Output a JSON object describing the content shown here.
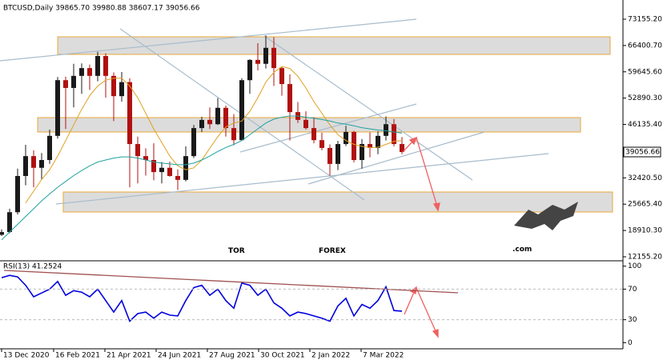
{
  "chart_data": [
    {
      "type": "candlestick",
      "title": "BTCUSD,Daily  39865.70 39980.88 38607.17 39056.66",
      "x": [
        0,
        10,
        20,
        30,
        40,
        50,
        60,
        70,
        80,
        90,
        100,
        110,
        120,
        130,
        140,
        150,
        160,
        170,
        180,
        190,
        200,
        210,
        220,
        230,
        240,
        250,
        260,
        270,
        280,
        290,
        300,
        310,
        320,
        330,
        340,
        350,
        360,
        370,
        380,
        390,
        400,
        410,
        420,
        430,
        440,
        450,
        460,
        470,
        480,
        490,
        500
      ],
      "open": [
        17800,
        18500,
        23600,
        32900,
        38000,
        35000,
        37000,
        43200,
        57500,
        55500,
        58600,
        60600,
        58600,
        63700,
        58600,
        53400,
        57000,
        41100,
        38000,
        37000,
        33900,
        35000,
        32900,
        31900,
        38000,
        45200,
        47300,
        46200,
        50400,
        45200,
        42100,
        57500,
        62700,
        61700,
        65800,
        60600,
        56500,
        49300,
        47300,
        45200,
        42100,
        40100,
        36000,
        41100,
        44200,
        37000,
        41100,
        40100,
        43200,
        46200,
        41100
      ],
      "high": [
        19200,
        24500,
        34800,
        40900,
        39500,
        38800,
        44800,
        58300,
        58400,
        61700,
        61800,
        61500,
        64800,
        64400,
        59500,
        59600,
        58000,
        43000,
        40000,
        41300,
        36500,
        36600,
        34600,
        40500,
        46000,
        48100,
        50500,
        52900,
        51000,
        48800,
        58000,
        62900,
        67000,
        69000,
        68500,
        60900,
        59000,
        51900,
        49500,
        48000,
        44000,
        41000,
        41900,
        45800,
        44500,
        42400,
        44100,
        44400,
        48200,
        47500,
        42900
      ],
      "low": [
        17500,
        18200,
        23000,
        30500,
        30000,
        32000,
        36000,
        42500,
        45000,
        50500,
        54000,
        55000,
        57200,
        53000,
        47000,
        52000,
        30000,
        31000,
        33000,
        31800,
        31000,
        32700,
        29300,
        31500,
        37500,
        44200,
        45000,
        46000,
        43000,
        40800,
        42000,
        54000,
        60000,
        60500,
        56000,
        53500,
        42000,
        46500,
        44800,
        41300,
        39500,
        33000,
        34400,
        40600,
        36400,
        34800,
        37700,
        38500,
        42000,
        40500,
        38500
      ],
      "close": [
        18500,
        23600,
        32900,
        38000,
        35000,
        37000,
        43200,
        57500,
        55500,
        58600,
        60600,
        58600,
        63700,
        58600,
        53400,
        57000,
        41100,
        38000,
        37000,
        33900,
        35000,
        32900,
        31900,
        38000,
        45200,
        47300,
        46200,
        50400,
        45200,
        42100,
        57500,
        62700,
        61700,
        65800,
        60600,
        56500,
        49300,
        47300,
        45200,
        42100,
        40100,
        36000,
        41100,
        44200,
        37000,
        41100,
        40100,
        43200,
        46200,
        41100,
        39056.66
      ],
      "up_color": "#1a1a1a",
      "down_color": "#b01010",
      "series": [
        {
          "color": "#e0a020",
          "values": [
            null,
            null,
            null,
            26000,
            29000,
            32000,
            34500,
            38000,
            42000,
            46000,
            50000,
            53500,
            56000,
            57500,
            58000,
            58000,
            56000,
            53000,
            49000,
            45000,
            41500,
            38000,
            35500,
            34500,
            35000,
            37000,
            40000,
            43000,
            45500,
            46500,
            47000,
            49500,
            53000,
            57000,
            59500,
            61000,
            60500,
            58500,
            55500,
            52000,
            49000,
            46000,
            43500,
            42000,
            41000,
            40500,
            40200,
            40300,
            41000,
            41800,
            42000
          ]
        },
        {
          "color": "#20a0a0",
          "values": [
            16500,
            18500,
            20500,
            22500,
            24500,
            26500,
            28300,
            30000,
            31500,
            33000,
            34300,
            35500,
            36500,
            37000,
            37500,
            37800,
            37800,
            37500,
            37000,
            36500,
            36200,
            36000,
            35800,
            35800,
            36200,
            37000,
            38000,
            39200,
            40200,
            41000,
            42000,
            43500,
            45000,
            46500,
            47500,
            48000,
            48300,
            48300,
            48000,
            47700,
            47400,
            47000,
            46500,
            46200,
            45800,
            45300,
            45000,
            44700,
            44500,
            44200,
            43900
          ]
        }
      ],
      "xlim": [
        -2,
        776
      ],
      "ylim": [
        11330,
        77260
      ],
      "yticks": [
        {
          "value": 73155.2,
          "label": "73155.20"
        },
        {
          "value": 66400.7,
          "label": "66400.70"
        },
        {
          "value": 59645.6,
          "label": "59645.60"
        },
        {
          "value": 52890.3,
          "label": "52890.30"
        },
        {
          "value": 46135.4,
          "label": "46135.40"
        },
        {
          "value": 32420.5,
          "label": "32420.50"
        },
        {
          "value": 25665.4,
          "label": "25665.40"
        },
        {
          "value": 18910.3,
          "label": "18910.30"
        },
        {
          "value": 12155.2,
          "label": "12155.20"
        }
      ],
      "last_price": 39056.66
    },
    {
      "type": "line",
      "title": "RSI(13) 41.2524",
      "x": [
        0,
        10,
        20,
        30,
        40,
        50,
        60,
        70,
        80,
        90,
        100,
        110,
        120,
        130,
        140,
        150,
        160,
        170,
        180,
        190,
        200,
        210,
        220,
        230,
        240,
        250,
        260,
        270,
        280,
        290,
        300,
        310,
        320,
        330,
        340,
        350,
        360,
        370,
        380,
        390,
        400,
        410,
        420,
        430,
        440,
        450,
        460,
        470,
        480,
        490,
        500
      ],
      "series": [
        {
          "color": "#0000dd",
          "values": [
            85,
            88,
            86,
            75,
            60,
            65,
            70,
            80,
            62,
            68,
            66,
            60,
            70,
            55,
            40,
            55,
            28,
            38,
            40,
            32,
            40,
            36,
            35,
            55,
            72,
            75,
            62,
            70,
            55,
            45,
            78,
            75,
            62,
            70,
            52,
            45,
            35,
            40,
            38,
            35,
            32,
            28,
            48,
            58,
            35,
            50,
            45,
            55,
            73,
            42,
            41.2524
          ]
        }
      ],
      "xlim": [
        -2,
        776
      ],
      "ylim": [
        -7,
        106
      ],
      "yticks": [
        100,
        70,
        30,
        0
      ],
      "xticks": [
        {
          "value": 0,
          "label": "13 Dec 2020"
        },
        {
          "value": 65,
          "label": "16 Feb 2021"
        },
        {
          "value": 129,
          "label": "21 Apr 2021"
        },
        {
          "value": 193,
          "label": "24 Jun 2021"
        },
        {
          "value": 257,
          "label": "27 Aug 2021"
        },
        {
          "value": 321,
          "label": "30 Oct 2021"
        },
        {
          "value": 385,
          "label": "2 Jan 2022"
        },
        {
          "value": 449,
          "label": "7 Mar 2022"
        }
      ]
    }
  ],
  "watermark": {
    "part1": "TOR",
    "part2": "FOREX",
    "part3": ".com"
  }
}
